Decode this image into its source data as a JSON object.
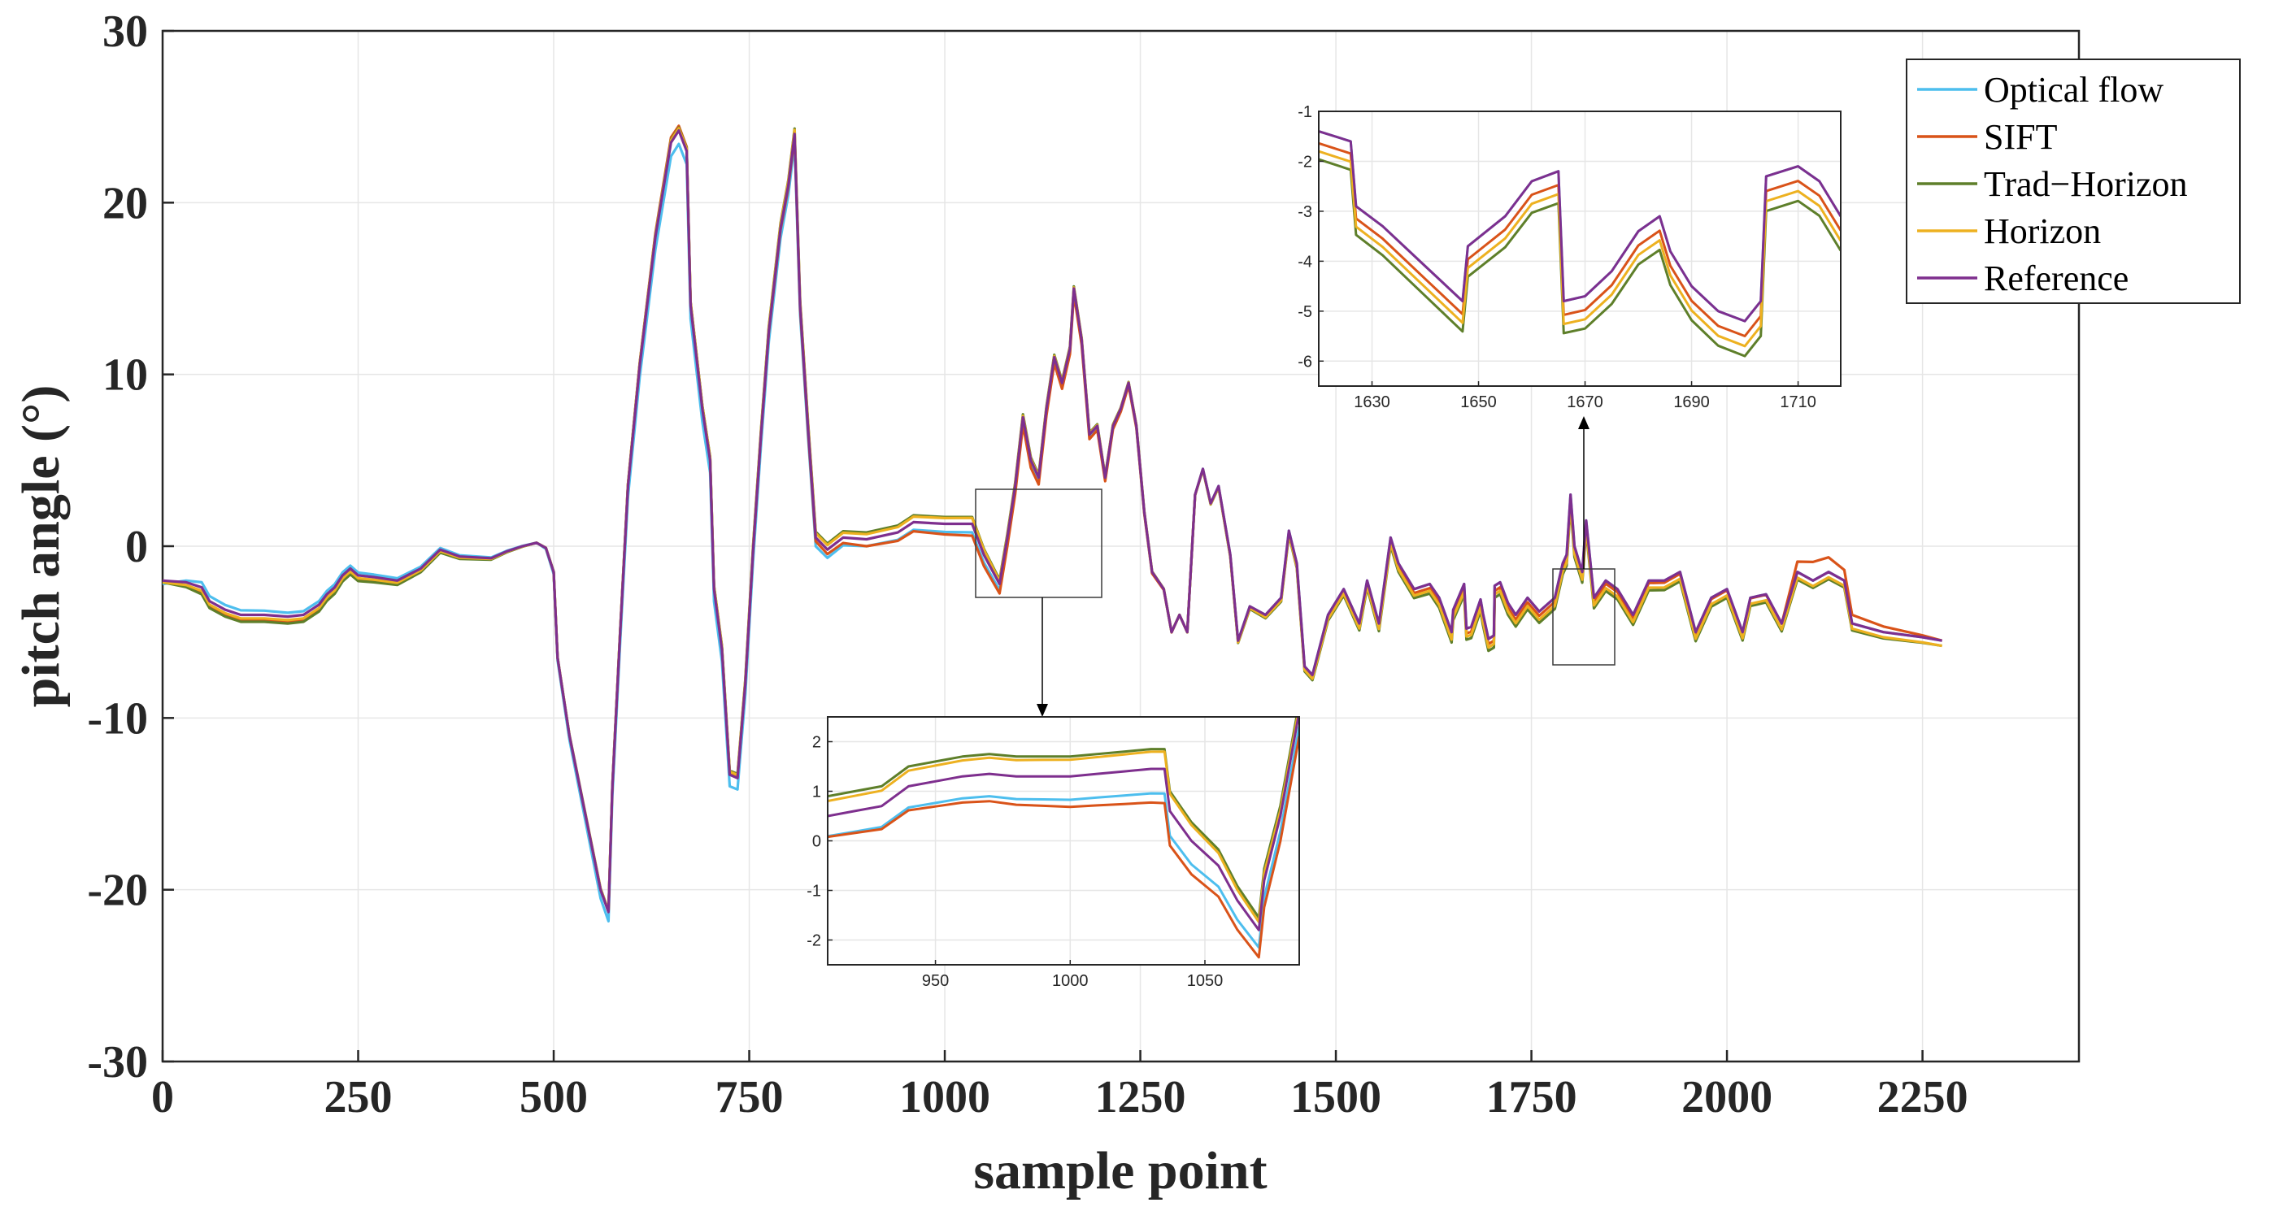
{
  "colors": {
    "optical_flow": "#4DBEEE",
    "sift": "#D95319",
    "trad_horizon": "#5E7F2A",
    "horizon": "#EDB120",
    "reference": "#7E2F8E"
  },
  "chart_data": {
    "type": "line",
    "title": "",
    "xlabel": "sample point",
    "ylabel": "pitch angle (°)",
    "xlim": [
      0,
      2450
    ],
    "ylim": [
      -30,
      30
    ],
    "xticks": [
      "0",
      "250",
      "500",
      "750",
      "1000",
      "1250",
      "1500",
      "1750",
      "2000",
      "2250"
    ],
    "yticks": [
      "30",
      "20",
      "10",
      "0",
      "-10",
      "-20",
      "-30"
    ],
    "grid": true,
    "legend_position": "top-right",
    "legend": [
      "Optical flow",
      "SIFT",
      "Trad−Horizon",
      "Horizon",
      "Reference"
    ],
    "reference_points": [
      [
        0,
        -2.0
      ],
      [
        30,
        -2.1
      ],
      [
        50,
        -2.4
      ],
      [
        60,
        -3.2
      ],
      [
        80,
        -3.7
      ],
      [
        100,
        -4.0
      ],
      [
        130,
        -4.0
      ],
      [
        160,
        -4.1
      ],
      [
        180,
        -4.0
      ],
      [
        200,
        -3.4
      ],
      [
        210,
        -2.8
      ],
      [
        220,
        -2.4
      ],
      [
        230,
        -1.7
      ],
      [
        240,
        -1.3
      ],
      [
        250,
        -1.7
      ],
      [
        270,
        -1.8
      ],
      [
        300,
        -2.0
      ],
      [
        330,
        -1.3
      ],
      [
        355,
        -0.2
      ],
      [
        380,
        -0.6
      ],
      [
        420,
        -0.7
      ],
      [
        440,
        -0.3
      ],
      [
        460,
        0.0
      ],
      [
        478,
        0.2
      ],
      [
        490,
        -0.1
      ],
      [
        500,
        -1.5
      ],
      [
        505,
        -6.5
      ],
      [
        520,
        -11.0
      ],
      [
        540,
        -15.5
      ],
      [
        560,
        -20.0
      ],
      [
        570,
        -21.3
      ],
      [
        575,
        -14.0
      ],
      [
        585,
        -5.0
      ],
      [
        595,
        3.5
      ],
      [
        610,
        10.5
      ],
      [
        630,
        18.0
      ],
      [
        650,
        23.5
      ],
      [
        660,
        24.2
      ],
      [
        670,
        23.0
      ],
      [
        675,
        14.0
      ],
      [
        690,
        8.0
      ],
      [
        700,
        5.0
      ],
      [
        705,
        -2.5
      ],
      [
        715,
        -6.0
      ],
      [
        725,
        -13.3
      ],
      [
        735,
        -13.5
      ],
      [
        745,
        -8.0
      ],
      [
        755,
        -0.2
      ],
      [
        765,
        6.5
      ],
      [
        775,
        12.5
      ],
      [
        790,
        18.5
      ],
      [
        800,
        21.0
      ],
      [
        808,
        24.0
      ],
      [
        815,
        14.0
      ],
      [
        825,
        7.0
      ],
      [
        835,
        0.5
      ],
      [
        850,
        -0.2
      ],
      [
        870,
        0.5
      ],
      [
        900,
        0.4
      ],
      [
        940,
        0.8
      ],
      [
        960,
        1.4
      ],
      [
        1000,
        1.3
      ],
      [
        1035,
        1.3
      ],
      [
        1050,
        -0.5
      ],
      [
        1070,
        -2.2
      ],
      [
        1080,
        0.5
      ],
      [
        1090,
        3.5
      ],
      [
        1100,
        7.5
      ],
      [
        1110,
        5.0
      ],
      [
        1120,
        4.0
      ],
      [
        1130,
        8.0
      ],
      [
        1140,
        11.0
      ],
      [
        1150,
        9.5
      ],
      [
        1160,
        11.5
      ],
      [
        1165,
        15.0
      ],
      [
        1175,
        12.0
      ],
      [
        1185,
        6.5
      ],
      [
        1195,
        7.0
      ],
      [
        1205,
        4.0
      ],
      [
        1215,
        7.0
      ],
      [
        1225,
        8.0
      ],
      [
        1235,
        9.5
      ],
      [
        1245,
        7.0
      ],
      [
        1255,
        2.0
      ],
      [
        1265,
        -1.5
      ],
      [
        1280,
        -2.5
      ],
      [
        1290,
        -5.0
      ],
      [
        1300,
        -4.0
      ],
      [
        1310,
        -5.0
      ],
      [
        1320,
        3.0
      ],
      [
        1330,
        4.5
      ],
      [
        1340,
        2.5
      ],
      [
        1350,
        3.5
      ],
      [
        1365,
        -0.5
      ],
      [
        1375,
        -5.5
      ],
      [
        1390,
        -3.5
      ],
      [
        1410,
        -4.0
      ],
      [
        1430,
        -3.0
      ],
      [
        1440,
        0.9
      ],
      [
        1450,
        -1.0
      ],
      [
        1460,
        -7.0
      ],
      [
        1470,
        -7.5
      ],
      [
        1490,
        -4.0
      ],
      [
        1510,
        -2.5
      ],
      [
        1530,
        -4.5
      ],
      [
        1540,
        -2.0
      ],
      [
        1555,
        -4.5
      ],
      [
        1570,
        0.5
      ],
      [
        1580,
        -1.0
      ],
      [
        1600,
        -2.5
      ],
      [
        1620,
        -2.2
      ],
      [
        1632,
        -3.0
      ],
      [
        1648,
        -5.0
      ],
      [
        1650,
        -3.7
      ],
      [
        1664,
        -2.2
      ],
      [
        1667,
        -4.8
      ],
      [
        1673,
        -4.7
      ],
      [
        1685,
        -3.1
      ],
      [
        1688,
        -3.9
      ],
      [
        1695,
        -5.4
      ],
      [
        1702,
        -5.2
      ],
      [
        1703,
        -2.3
      ],
      [
        1710,
        -2.1
      ],
      [
        1720,
        -3.3
      ],
      [
        1730,
        -4.0
      ],
      [
        1745,
        -3.0
      ],
      [
        1760,
        -3.8
      ],
      [
        1780,
        -3.0
      ],
      [
        1790,
        -1.0
      ],
      [
        1795,
        -0.5
      ],
      [
        1800,
        3.0
      ],
      [
        1805,
        0.0
      ],
      [
        1815,
        -1.5
      ],
      [
        1820,
        1.5
      ],
      [
        1830,
        -3.0
      ],
      [
        1845,
        -2.0
      ],
      [
        1860,
        -2.5
      ],
      [
        1880,
        -4.0
      ],
      [
        1900,
        -2.0
      ],
      [
        1920,
        -2.0
      ],
      [
        1940,
        -1.5
      ],
      [
        1960,
        -5.0
      ],
      [
        1980,
        -3.0
      ],
      [
        2000,
        -2.5
      ],
      [
        2020,
        -5.0
      ],
      [
        2030,
        -3.0
      ],
      [
        2050,
        -2.8
      ],
      [
        2070,
        -4.5
      ],
      [
        2090,
        -1.5
      ],
      [
        2110,
        -2.0
      ],
      [
        2130,
        -1.5
      ],
      [
        2150,
        -2.0
      ],
      [
        2160,
        -4.5
      ],
      [
        2200,
        -5.0
      ],
      [
        2250,
        -5.3
      ],
      [
        2275,
        -5.5
      ]
    ],
    "insets": [
      {
        "xlim": [
          910,
          1085
        ],
        "ylim": [
          -2.5,
          2.5
        ],
        "xticks": [
          "950",
          "1000",
          "1050"
        ],
        "yticks": [
          "2",
          "1",
          "0",
          "-1",
          "-2"
        ],
        "reference_points": [
          [
            910,
            0.5
          ],
          [
            920,
            0.6
          ],
          [
            930,
            0.7
          ],
          [
            940,
            1.1
          ],
          [
            950,
            1.2
          ],
          [
            960,
            1.3
          ],
          [
            970,
            1.35
          ],
          [
            980,
            1.3
          ],
          [
            990,
            1.3
          ],
          [
            1000,
            1.3
          ],
          [
            1010,
            1.35
          ],
          [
            1020,
            1.4
          ],
          [
            1030,
            1.45
          ],
          [
            1035,
            1.45
          ],
          [
            1037,
            0.6
          ],
          [
            1045,
            0.0
          ],
          [
            1055,
            -0.5
          ],
          [
            1062,
            -1.2
          ],
          [
            1070,
            -1.8
          ],
          [
            1072,
            -0.8
          ],
          [
            1078,
            0.5
          ],
          [
            1085,
            2.6
          ]
        ]
      },
      {
        "xlim": [
          1620,
          1718
        ],
        "ylim": [
          -6.5,
          -1
        ],
        "xticks": [
          "1630",
          "1650",
          "1670",
          "1690",
          "1710"
        ],
        "yticks": [
          "-1",
          "-2",
          "-3",
          "-4",
          "-5",
          "-6"
        ],
        "reference_points": [
          [
            1620,
            -1.4
          ],
          [
            1626,
            -1.6
          ],
          [
            1627,
            -2.9
          ],
          [
            1632,
            -3.3
          ],
          [
            1640,
            -4.1
          ],
          [
            1647,
            -4.8
          ],
          [
            1648,
            -3.7
          ],
          [
            1655,
            -3.1
          ],
          [
            1660,
            -2.4
          ],
          [
            1665,
            -2.2
          ],
          [
            1666,
            -4.8
          ],
          [
            1670,
            -4.7
          ],
          [
            1675,
            -4.2
          ],
          [
            1680,
            -3.4
          ],
          [
            1684,
            -3.1
          ],
          [
            1686,
            -3.8
          ],
          [
            1690,
            -4.5
          ],
          [
            1695,
            -5.0
          ],
          [
            1700,
            -5.2
          ],
          [
            1703,
            -4.8
          ],
          [
            1704,
            -2.3
          ],
          [
            1710,
            -2.1
          ],
          [
            1714,
            -2.4
          ],
          [
            1718,
            -3.1
          ]
        ]
      }
    ],
    "series": [
      {
        "name": "Optical flow",
        "offset_profile": [
          [
            0,
            -0.2
          ],
          [
            50,
            0.3
          ],
          [
            200,
            0.2
          ],
          [
            480,
            0.0
          ],
          [
            560,
            -0.5
          ],
          [
            650,
            -0.8
          ],
          [
            900,
            -0.4
          ],
          [
            1040,
            -0.5
          ],
          [
            1080,
            -0.3
          ],
          [
            1300,
            0.0
          ],
          [
            1700,
            0.0
          ],
          [
            2275,
            0.0
          ]
        ]
      },
      {
        "name": "SIFT",
        "offset_profile": [
          [
            0,
            0.0
          ],
          [
            50,
            -0.3
          ],
          [
            200,
            -0.3
          ],
          [
            480,
            0.0
          ],
          [
            560,
            0.0
          ],
          [
            650,
            0.3
          ],
          [
            900,
            -0.4
          ],
          [
            1040,
            -0.7
          ],
          [
            1080,
            -0.5
          ],
          [
            1300,
            0.0
          ],
          [
            1700,
            -0.3
          ],
          [
            2080,
            0.0
          ],
          [
            2100,
            1.2
          ],
          [
            2160,
            0.5
          ],
          [
            2275,
            0.0
          ]
        ]
      },
      {
        "name": "Trad−Horizon",
        "offset_profile": [
          [
            0,
            -0.1
          ],
          [
            50,
            -0.4
          ],
          [
            200,
            -0.4
          ],
          [
            480,
            0.0
          ],
          [
            900,
            0.4
          ],
          [
            1040,
            0.4
          ],
          [
            1080,
            0.2
          ],
          [
            1300,
            0.0
          ],
          [
            1700,
            -0.7
          ],
          [
            2160,
            -0.4
          ],
          [
            2275,
            -0.3
          ]
        ]
      },
      {
        "name": "Horizon",
        "offset_profile": [
          [
            0,
            -0.1
          ],
          [
            50,
            -0.2
          ],
          [
            200,
            -0.2
          ],
          [
            480,
            0.0
          ],
          [
            900,
            0.3
          ],
          [
            1040,
            0.35
          ],
          [
            1080,
            0.1
          ],
          [
            1300,
            0.0
          ],
          [
            1700,
            -0.5
          ],
          [
            2160,
            -0.3
          ],
          [
            2275,
            -0.3
          ]
        ]
      },
      {
        "name": "Reference",
        "offset_profile": [
          [
            0,
            0.0
          ],
          [
            2275,
            0.0
          ]
        ]
      }
    ]
  }
}
